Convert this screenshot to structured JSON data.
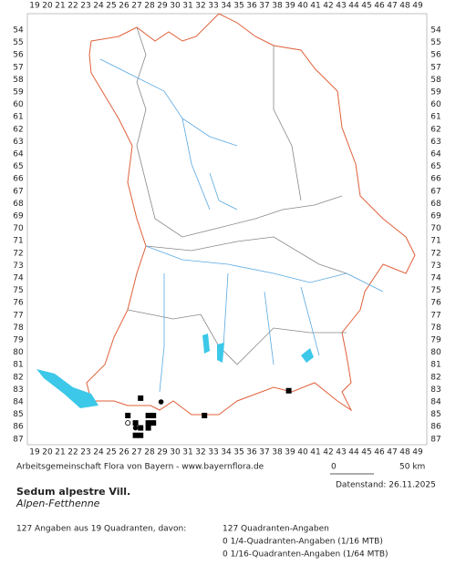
{
  "map": {
    "columns": [
      19,
      20,
      21,
      22,
      23,
      24,
      25,
      26,
      27,
      28,
      29,
      30,
      31,
      32,
      33,
      34,
      35,
      36,
      37,
      38,
      39,
      40,
      41,
      42,
      43,
      44,
      45,
      46,
      47,
      48,
      49
    ],
    "rows": [
      54,
      55,
      56,
      57,
      58,
      59,
      60,
      61,
      62,
      63,
      64,
      65,
      66,
      67,
      68,
      69,
      70,
      71,
      72,
      73,
      74,
      75,
      76,
      77,
      78,
      79,
      80,
      81,
      82,
      83,
      84,
      85,
      86,
      87
    ],
    "records": [
      {
        "col": 27.3,
        "row": 83.7,
        "symbol": "square"
      },
      {
        "col": 38.9,
        "row": 83.1,
        "symbol": "square"
      },
      {
        "col": 28.9,
        "row": 84.0,
        "symbol": "circle"
      },
      {
        "col": 26.3,
        "row": 85.1,
        "symbol": "square"
      },
      {
        "col": 32.3,
        "row": 85.1,
        "symbol": "square"
      },
      {
        "col": 26.3,
        "row": 85.7,
        "symbol": "open-circle"
      },
      {
        "col": 26.9,
        "row": 85.7,
        "symbol": "square"
      },
      {
        "col": 27.9,
        "row": 85.1,
        "symbol": "square"
      },
      {
        "col": 28.3,
        "row": 85.1,
        "symbol": "square"
      },
      {
        "col": 27.9,
        "row": 85.7,
        "symbol": "square"
      },
      {
        "col": 28.3,
        "row": 85.7,
        "symbol": "square"
      },
      {
        "col": 26.9,
        "row": 86.1,
        "symbol": "circle"
      },
      {
        "col": 27.3,
        "row": 86.1,
        "symbol": "square"
      },
      {
        "col": 27.9,
        "row": 86.1,
        "symbol": "square"
      },
      {
        "col": 26.9,
        "row": 86.7,
        "symbol": "square"
      },
      {
        "col": 27.3,
        "row": 86.7,
        "symbol": "square"
      }
    ]
  },
  "footer": {
    "credit": "Arbeitsgemeinschaft Flora von Bayern - www.bayernflora.de",
    "scale_start": "0",
    "scale_end": "50 km",
    "date": "Datenstand: 26.11.2025",
    "title": "Sedum alpestre Vill.",
    "subtitle": "Alpen-Fetthenne",
    "summary": "127 Angaben aus 19 Quadranten, davon:",
    "stats": [
      "127 Quadranten-Angaben",
      "0 1/4-Quadranten-Angaben (1/16 MTB)",
      "0 1/16-Quadranten-Angaben (1/64 MTB)"
    ]
  }
}
